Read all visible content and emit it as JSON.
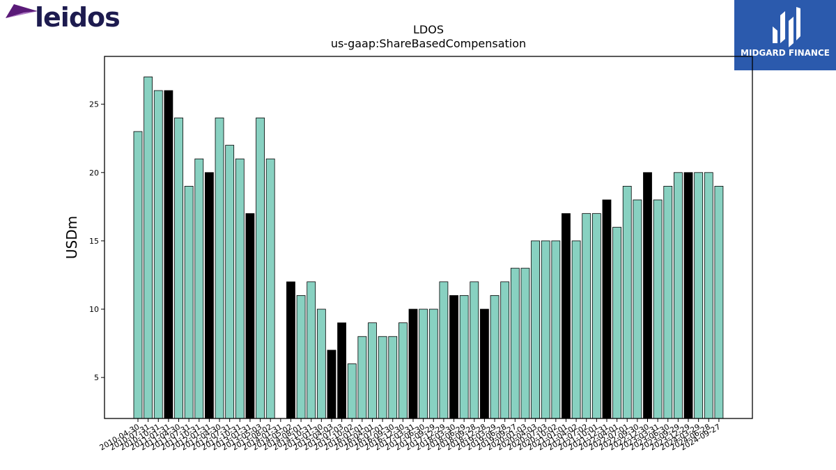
{
  "logos": {
    "left_brand": "leidos",
    "right_brand": "MIDGARD FINANCE"
  },
  "chart_data": {
    "type": "bar",
    "title": "LDOS",
    "subtitle": "us-gaap:ShareBasedCompensation",
    "xlabel": "",
    "ylabel": "USDm",
    "ylim": [
      2,
      28.5
    ],
    "yticks": [
      5,
      10,
      15,
      20,
      25
    ],
    "grid": false,
    "colors": {
      "quarterly": "#88d1c1",
      "annual": "#000000",
      "edge": "#000000"
    },
    "categories": [
      "2010-04-30",
      "2010-07-31",
      "2010-10-31",
      "2011-01-31",
      "2011-04-30",
      "2011-07-31",
      "2011-10-31",
      "2012-01-31",
      "2012-04-30",
      "2012-07-31",
      "2012-10-31",
      "2013-01-31",
      "2013-05-03",
      "2013-08-02",
      "2014-01-31",
      "2014-05-02",
      "2014-08-01",
      "2014-10-31",
      "2015-01-30",
      "2015-04-03",
      "2015-07-03",
      "2015-10-02",
      "2016-01-01",
      "2016-04-01",
      "2016-07-01",
      "2016-09-30",
      "2016-12-30",
      "2017-03-31",
      "2017-06-30",
      "2017-09-29",
      "2017-12-29",
      "2018-03-30",
      "2018-06-29",
      "2018-09-28",
      "2018-12-28",
      "2019-03-29",
      "2019-06-28",
      "2019-09-27",
      "2020-01-03",
      "2020-04-03",
      "2020-07-03",
      "2020-10-02",
      "2021-01-01",
      "2021-04-02",
      "2021-07-02",
      "2021-10-01",
      "2021-12-31",
      "2022-04-01",
      "2022-07-01",
      "2022-09-30",
      "2022-12-30",
      "2023-03-31",
      "2023-06-30",
      "2023-09-29",
      "2023-12-29",
      "2024-03-29",
      "2024-06-28",
      "2024-09-27"
    ],
    "visible_tick_labels": [
      "2010-04-30",
      "2010-07-31",
      "2010-10-31",
      "2011-01-31",
      "2011-04-30",
      "2011-07-31",
      "2011-10-31",
      "2012-01-31",
      "2012-04-30",
      "2012-07-31",
      "2012-10-31",
      "2013-01-31",
      "2013-05-03",
      "2013-08-02",
      "2014-01-31",
      "2014-05-02",
      "2014-08-01",
      "2014-10-31",
      "2015-01-30",
      "2015-04-03",
      "2015-07-03",
      "2015-10-02",
      "2016-01-01",
      "2016-04-01",
      "2016-07-01",
      "2016-09-30",
      "2016-12-30",
      "2017-03-31",
      "2017-06-30",
      "2017-09-29",
      "2017-12-29",
      "2018-03-30",
      "2018-06-29",
      "2018-09-28",
      "2018-12-28",
      "2019-03-29",
      "2019-06-28",
      "2019-09-27",
      "2020-01-03",
      "2020-04-03",
      "2020-07-03",
      "2020-10-02",
      "2021-01-01",
      "2021-04-02",
      "2021-07-02",
      "2021-10-01",
      "2021-12-31",
      "2022-04-01",
      "2022-07-01",
      "2022-09-30",
      "2022-12-30",
      "2023-03-31",
      "2023-06-30",
      "2023-09-29",
      "2023-12-29",
      "2024-03-29",
      "2024-06-28",
      "2024-09-27"
    ],
    "values": [
      23,
      27,
      26,
      26,
      24,
      19,
      21,
      20,
      24,
      22,
      21,
      17,
      24,
      21,
      null,
      12,
      11,
      12,
      10,
      7,
      9,
      6,
      8,
      9,
      8,
      8,
      9,
      10,
      10,
      10,
      12,
      11,
      11,
      12,
      10,
      11,
      12,
      13,
      13,
      15,
      15,
      15,
      17,
      15,
      17,
      17,
      18,
      16,
      19,
      18,
      20,
      18,
      19,
      20,
      20,
      20,
      20,
      19
    ],
    "annual_flags": [
      false,
      false,
      false,
      true,
      false,
      false,
      false,
      true,
      false,
      false,
      false,
      true,
      false,
      false,
      false,
      true,
      false,
      false,
      false,
      true,
      true,
      false,
      false,
      false,
      false,
      false,
      false,
      true,
      false,
      false,
      false,
      true,
      false,
      false,
      true,
      false,
      false,
      false,
      false,
      false,
      false,
      false,
      true,
      false,
      false,
      false,
      true,
      false,
      false,
      false,
      true,
      false,
      false,
      false,
      true,
      false,
      false,
      false
    ]
  }
}
